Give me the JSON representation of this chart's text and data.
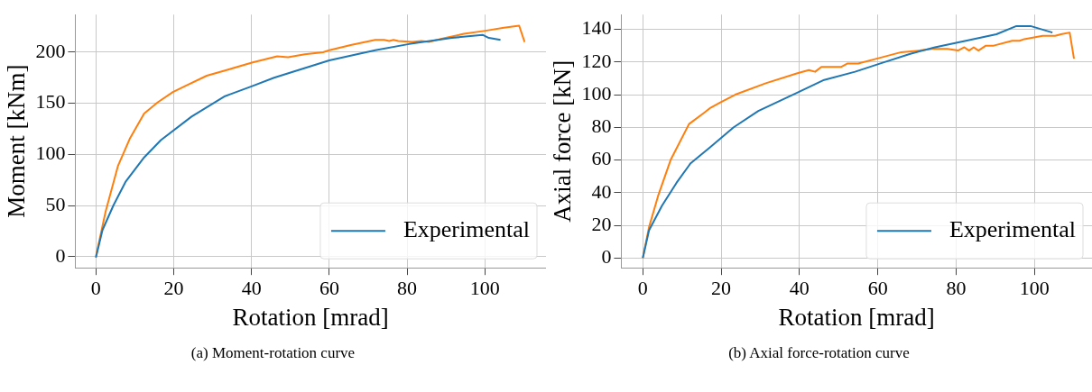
{
  "chart_data": [
    {
      "type": "line",
      "xlabel": "Rotation [mrad]",
      "ylabel": "Moment [kNm]",
      "annotations": [
        "(a) Moment-rotation curve"
      ],
      "xlim": [
        -5.3,
        115.7
      ],
      "ylim": [
        -11,
        236.8
      ],
      "xticks": [
        0,
        20,
        40,
        60,
        80,
        100
      ],
      "yticks": [
        0,
        50,
        100,
        150,
        200
      ],
      "grid": true,
      "legend": "bottom right",
      "series": [
        {
          "name": "Experimental",
          "color": "#1f77b4",
          "x": [
            0,
            1.7,
            4.5,
            7.6,
            12.4,
            16.7,
            24.6,
            33.2,
            40.3,
            45.8,
            60,
            71.8,
            80.5,
            91.5,
            99.4,
            101,
            104
          ],
          "values": [
            -1,
            26,
            50,
            73,
            97,
            114,
            137,
            157,
            167,
            175,
            192,
            202,
            208,
            214,
            217,
            214,
            212
          ]
        },
        {
          "color": "#ff7f0e",
          "x": [
            0,
            2.5,
            5.7,
            8.8,
            12.4,
            15.9,
            19.8,
            23,
            28.5,
            34,
            40.3,
            46.6,
            49.4,
            53.7,
            58.4,
            60,
            65.5,
            71.8,
            74.1,
            75.4,
            76.5,
            77.7,
            81.3,
            83.6,
            85.6,
            89.9,
            94.6,
            100.1,
            104.9,
            108.8,
            110.2
          ],
          "values": [
            0,
            44,
            89,
            116,
            140,
            151,
            161,
            167,
            177,
            183,
            190,
            196,
            195,
            198,
            200,
            202,
            207,
            212,
            212,
            211,
            212,
            211,
            210,
            211,
            210,
            214,
            218,
            221,
            224,
            226,
            210
          ]
        }
      ]
    },
    {
      "type": "line",
      "xlabel": "Rotation [mrad]",
      "ylabel": "Axial force [kN]",
      "annotations": [
        "(b) Axial force-rotation curve"
      ],
      "xlim": [
        -5.5,
        114.7
      ],
      "ylim": [
        -6,
        149
      ],
      "xticks": [
        0,
        20,
        40,
        60,
        80,
        100
      ],
      "yticks": [
        0,
        20,
        40,
        60,
        80,
        100,
        120,
        140
      ],
      "grid": true,
      "legend": "bottom right",
      "series": [
        {
          "name": "Experimental",
          "color": "#1f77b4",
          "x": [
            0,
            1.6,
            4.9,
            8.6,
            12.2,
            17.3,
            23.2,
            29.5,
            39.3,
            46.3,
            54.2,
            60.5,
            68.3,
            74.6,
            82.5,
            90.3,
            95.4,
            99,
            104.6
          ],
          "values": [
            0,
            17,
            32,
            46,
            58,
            68,
            80,
            90,
            101,
            109,
            114,
            119,
            125,
            129,
            133,
            137,
            142,
            142,
            138
          ]
        },
        {
          "color": "#ff7f0e",
          "x": [
            0,
            1.6,
            3.9,
            7.1,
            11.8,
            15.7,
            17.3,
            19.6,
            23.6,
            31.4,
            39.3,
            42.4,
            44,
            45.6,
            48.7,
            50.7,
            52.2,
            55,
            59.7,
            66,
            70.7,
            73.8,
            77.8,
            80.5,
            82.1,
            83.3,
            84.5,
            85.7,
            87.6,
            89.6,
            94.3,
            96.2,
            97.4,
            102.1,
            105.3,
            106.8,
            109,
            110.1
          ],
          "values": [
            0,
            19,
            38,
            60,
            82,
            89,
            92,
            95,
            100,
            107,
            113,
            115,
            114,
            117,
            117,
            117,
            119,
            119,
            122,
            126,
            127,
            128,
            128,
            127,
            129,
            127,
            129,
            127,
            130,
            130,
            133,
            133,
            134,
            136,
            136,
            137,
            138,
            122
          ]
        }
      ]
    }
  ]
}
